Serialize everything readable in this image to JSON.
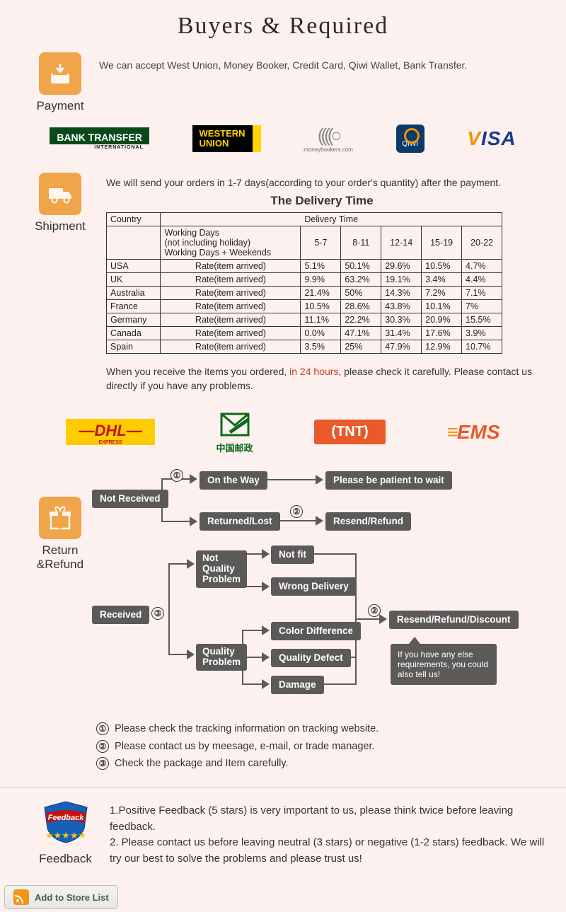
{
  "header": {
    "title": "Buyers & Required"
  },
  "payment": {
    "label": "Payment",
    "text": "We can accept West Union, Money Booker, Credit Card, Qiwi Wallet, Bank Transfer.",
    "logos": {
      "bank_transfer": "BANK TRANSFER",
      "bank_transfer_sub": "INTERNATIONAL",
      "western_union_l1": "WESTERN",
      "western_union_l2": "UNION",
      "moneybookers": "moneybookers.com",
      "qiwi": "QIWI",
      "visa": "VISA"
    }
  },
  "shipment": {
    "label": "Shipment",
    "intro": "We will send your orders in 1-7 days(according to your order's quantity) after the payment.",
    "table_title": "The Delivery Time",
    "col_country": "Country",
    "col_delivery": "Delivery Time",
    "row_working_l1": "Working Days",
    "row_working_l2": "(not including holiday)",
    "row_working_l3": "Working Days + Weekends",
    "time_headers": [
      "5-7",
      "8-11",
      "12-14",
      "15-19",
      "20-22"
    ],
    "rate_label": "Rate(item arrived)",
    "rows": [
      {
        "country": "USA",
        "vals": [
          "5.1%",
          "50.1%",
          "29.6%",
          "10.5%",
          "4.7%"
        ]
      },
      {
        "country": "UK",
        "vals": [
          "9.9%",
          "63.2%",
          "19.1%",
          "3.4%",
          "4.4%"
        ]
      },
      {
        "country": "Australia",
        "vals": [
          "21.4%",
          "50%",
          "14.3%",
          "7.2%",
          "7.1%"
        ]
      },
      {
        "country": "France",
        "vals": [
          "10.5%",
          "28.6%",
          "43.8%",
          "10.1%",
          "7%"
        ]
      },
      {
        "country": "Germany",
        "vals": [
          "11.1%",
          "22.2%",
          "30.3%",
          "20.9%",
          "15.5%"
        ]
      },
      {
        "country": "Canada",
        "vals": [
          "0.0%",
          "47.1%",
          "31.4%",
          "17.6%",
          "3.9%"
        ]
      },
      {
        "country": "Spain",
        "vals": [
          "3.5%",
          "25%",
          "47.9%",
          "12.9%",
          "10.7%"
        ]
      }
    ],
    "note_pre": "When you receive the items you ordered, ",
    "note_red": "in 24 hours",
    "note_post": ", please check it carefully. Please contact us directly if you have any problems.",
    "carriers": {
      "dhl": "DHL",
      "dhl_sub": "EXPRESS",
      "chinapost": "中国邮政",
      "tnt": "TNT",
      "ems": "EMS"
    }
  },
  "return": {
    "label": "Return &Refund",
    "chips": {
      "not_received": "Not Received",
      "on_the_way": "On the Way",
      "please_wait": "Please be patient to wait",
      "returned_lost": "Returned/Lost",
      "resend_refund": "Resend/Refund",
      "received": "Received",
      "not_quality_l1": "Not",
      "not_quality_l2": "Quality",
      "not_quality_l3": "Problem",
      "quality_l1": "Quality",
      "quality_l2": "Problem",
      "not_fit": "Not fit",
      "wrong_delivery": "Wrong Delivery",
      "color_diff": "Color Difference",
      "quality_defect": "Quality Defect",
      "damage": "Damage",
      "resend_refund_discount": "Resend/Refund/Discount",
      "speech": "If you have any else requirements, you could also tell us!"
    },
    "notes": [
      "Please check the tracking information on tracking website.",
      "Please contact us by meesage, e-mail, or trade manager.",
      "Check the package and Item carefully."
    ]
  },
  "feedback": {
    "label": "Feedback",
    "line1": "1.Positive Feedback (5 stars) is very important to us, please think twice before leaving feedback.",
    "line2": "2. Please contact us before leaving neutral (3 stars) or negative (1-2 stars) feedback. We will try our best to solve the problems and please trust us!"
  },
  "footer": {
    "add_to_store": "Add to Store List"
  },
  "colors": {
    "bg": "#fdf1ef",
    "chip": "#5c5a58",
    "orange": "#f0a54a",
    "red_text": "#c63a1a"
  }
}
